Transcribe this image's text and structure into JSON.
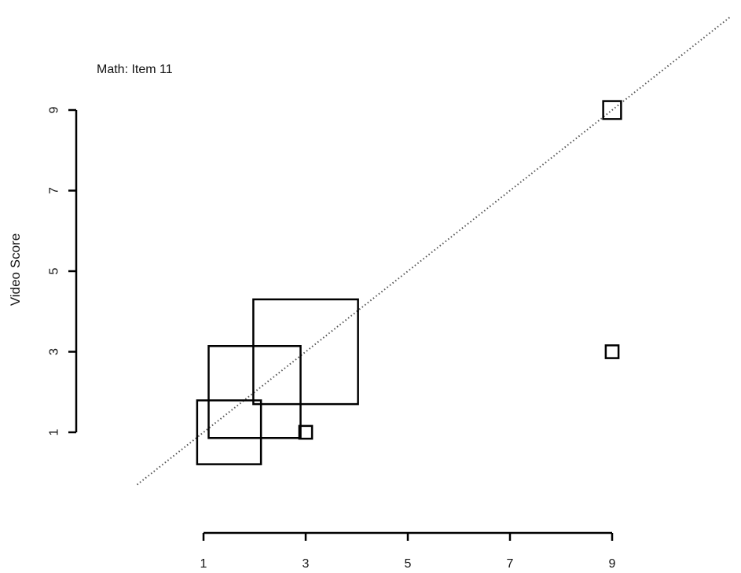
{
  "chart_data": {
    "type": "scatter",
    "title": "Math: Item 11",
    "xlabel": "",
    "ylabel": "Video Score",
    "xlim": [
      1,
      9
    ],
    "ylim": [
      1,
      9
    ],
    "x_ticks": [
      "1",
      "3",
      "5",
      "7",
      "9"
    ],
    "y_ticks": [
      "1",
      "3",
      "5",
      "7",
      "9"
    ],
    "reference_line": "y = x (dotted)",
    "marker": "square sized by count",
    "points": [
      {
        "x": 1.5,
        "y": 1,
        "relative_size": 1.25
      },
      {
        "x": 2,
        "y": 2,
        "relative_size": 1.8
      },
      {
        "x": 3,
        "y": 3,
        "relative_size": 2.05
      },
      {
        "x": 3,
        "y": 1,
        "relative_size": 0.25
      },
      {
        "x": 9,
        "y": 9,
        "relative_size": 0.35
      },
      {
        "x": 9,
        "y": 3,
        "relative_size": 0.25
      }
    ]
  }
}
